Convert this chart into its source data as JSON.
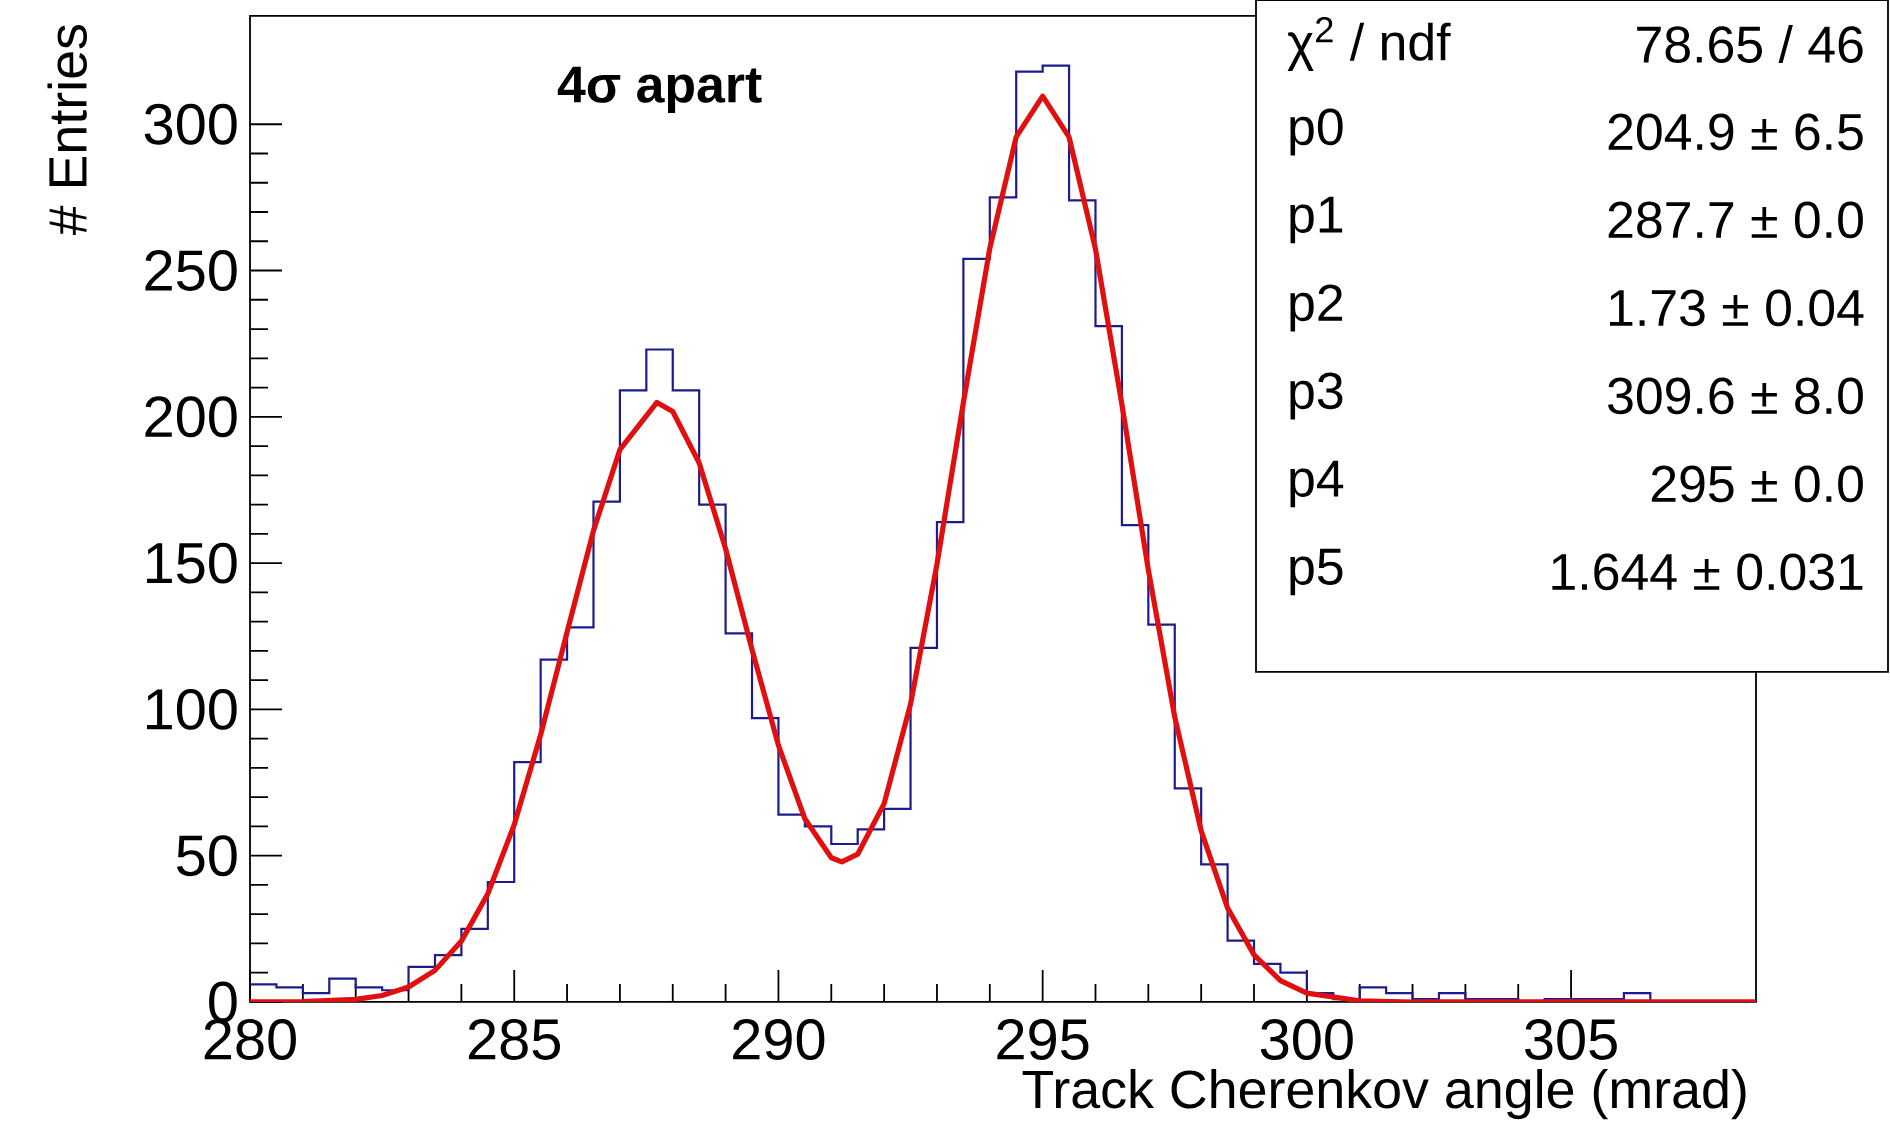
{
  "chart_data": {
    "type": "histogram",
    "xlabel": "Track Cherenkov angle (mrad)",
    "ylabel": "# Entries",
    "annotations": [
      "4σ apart",
      "χ$^{2}$ / ndf",
      "78.65 / 46",
      "p0",
      "204.9 ± 6.5",
      "p1",
      "287.7 ± 0.0",
      "p2",
      "1.73 ± 0.04",
      "p3",
      "309.6 ± 8.0",
      "p4",
      "295 ± 0.0",
      "p5",
      "1.644 ± 0.031"
    ],
    "bins": [
      280,
      280.5,
      281,
      281.5,
      282,
      282.5,
      283,
      283.5,
      284,
      284.5,
      285,
      285.5,
      286,
      286.5,
      287,
      287.5,
      288,
      288.5,
      289,
      289.5,
      290,
      290.5,
      291,
      291.5,
      292,
      292.5,
      293,
      293.5,
      294,
      294.5,
      295,
      295.5,
      296,
      296.5,
      297,
      297.5,
      298,
      298.5,
      299,
      299.5,
      300,
      300.5,
      301,
      301.5,
      302,
      302.5,
      303,
      303.5,
      304,
      304.5,
      305,
      305.5,
      306,
      306.5,
      307,
      307.5,
      308,
      308.5
    ],
    "series": [
      {
        "type": "histogram",
        "color": "#1c1c8c",
        "values": [
          6,
          5,
          3,
          8,
          5,
          4,
          12,
          16,
          25,
          41,
          82,
          117,
          128,
          171,
          209,
          223,
          209,
          170,
          126,
          97,
          64,
          60,
          54,
          59,
          66,
          121,
          164,
          254,
          275,
          318,
          320,
          274,
          231,
          163,
          129,
          73,
          47,
          21,
          13,
          10,
          3,
          1,
          5,
          3,
          1,
          3,
          1,
          1,
          0,
          1,
          1,
          1,
          3,
          0,
          0,
          0,
          0
        ]
      },
      {
        "type": "line",
        "color": "#e01010",
        "x": [
          280,
          281,
          282,
          282.5,
          283,
          283.5,
          284,
          284.5,
          285,
          285.5,
          286,
          286.5,
          287,
          287.7,
          288,
          288.5,
          289,
          289.5,
          290,
          290.5,
          291,
          291.2,
          291.5,
          292,
          292.5,
          293,
          293.5,
          294,
          294.5,
          295,
          295.5,
          296,
          296.5,
          297,
          297.5,
          298,
          298.5,
          299,
          299.5,
          300,
          301,
          302,
          305,
          308.5
        ],
        "values": [
          0,
          0.1,
          0.9,
          2.2,
          5.1,
          10.8,
          20.8,
          37.0,
          60.6,
          91.3,
          126.4,
          161.1,
          188.8,
          204.9,
          201.8,
          184.2,
          154.9,
          120.4,
          87.7,
          62.6,
          49.3,
          47.9,
          50.5,
          67.8,
          101.8,
          149.6,
          204.9,
          257.6,
          295.7,
          309.6,
          295.6,
          257.3,
          204.2,
          147.7,
          97.4,
          58.5,
          32.1,
          16.1,
          7.3,
          3.0,
          0.4,
          0,
          0,
          0
        ]
      }
    ],
    "xlim": [
      280,
      308.5
    ],
    "ylim": [
      0,
      337
    ],
    "xticks": [
      280,
      285,
      290,
      295,
      300,
      305
    ],
    "yticks": [
      0,
      50,
      100,
      150,
      200,
      250,
      300
    ]
  }
}
